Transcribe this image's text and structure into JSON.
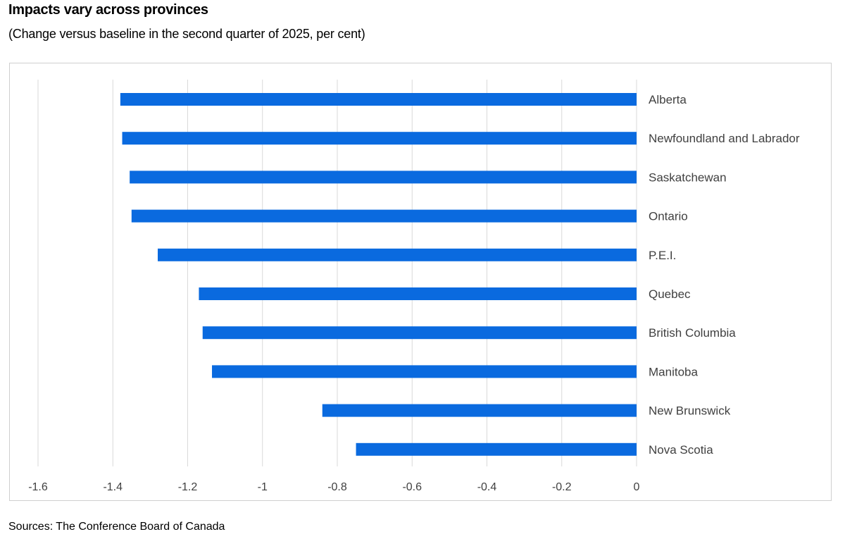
{
  "header": {
    "title": "Impacts vary across provinces",
    "subtitle": "(Change versus baseline in the second quarter of 2025, per cent)"
  },
  "footer": {
    "source": "Sources: The Conference Board of Canada"
  },
  "colors": {
    "bar": "#0a6adf",
    "gridline": "#d9d9d9",
    "frame": "#cfcfcf",
    "label": "#404040"
  },
  "chart_data": {
    "type": "bar",
    "orientation": "horizontal",
    "categories": [
      "Alberta",
      "Newfoundland and Labrador",
      "Saskatchewan",
      "Ontario",
      "P.E.I.",
      "Quebec",
      "British Columbia",
      "Manitoba",
      "New Brunswick",
      "Nova Scotia"
    ],
    "values": [
      -1.38,
      -1.375,
      -1.355,
      -1.35,
      -1.28,
      -1.17,
      -1.16,
      -1.135,
      -0.84,
      -0.75
    ],
    "title": "Impacts vary across provinces",
    "subtitle": "(Change versus baseline in the second quarter of 2025, per cent)",
    "xlabel": "",
    "ylabel": "",
    "xlim": [
      -1.6,
      0
    ],
    "x_ticks": [
      -1.6,
      -1.4,
      -1.2,
      -1,
      -0.8,
      -0.6,
      -0.4,
      -0.2,
      0
    ],
    "x_tick_labels": [
      "-1.6",
      "-1.4",
      "-1.2",
      "-1",
      "-0.8",
      "-0.6",
      "-0.4",
      "-0.2",
      "0"
    ],
    "category_label_side": "right",
    "grid": "vertical",
    "legend": "none"
  }
}
